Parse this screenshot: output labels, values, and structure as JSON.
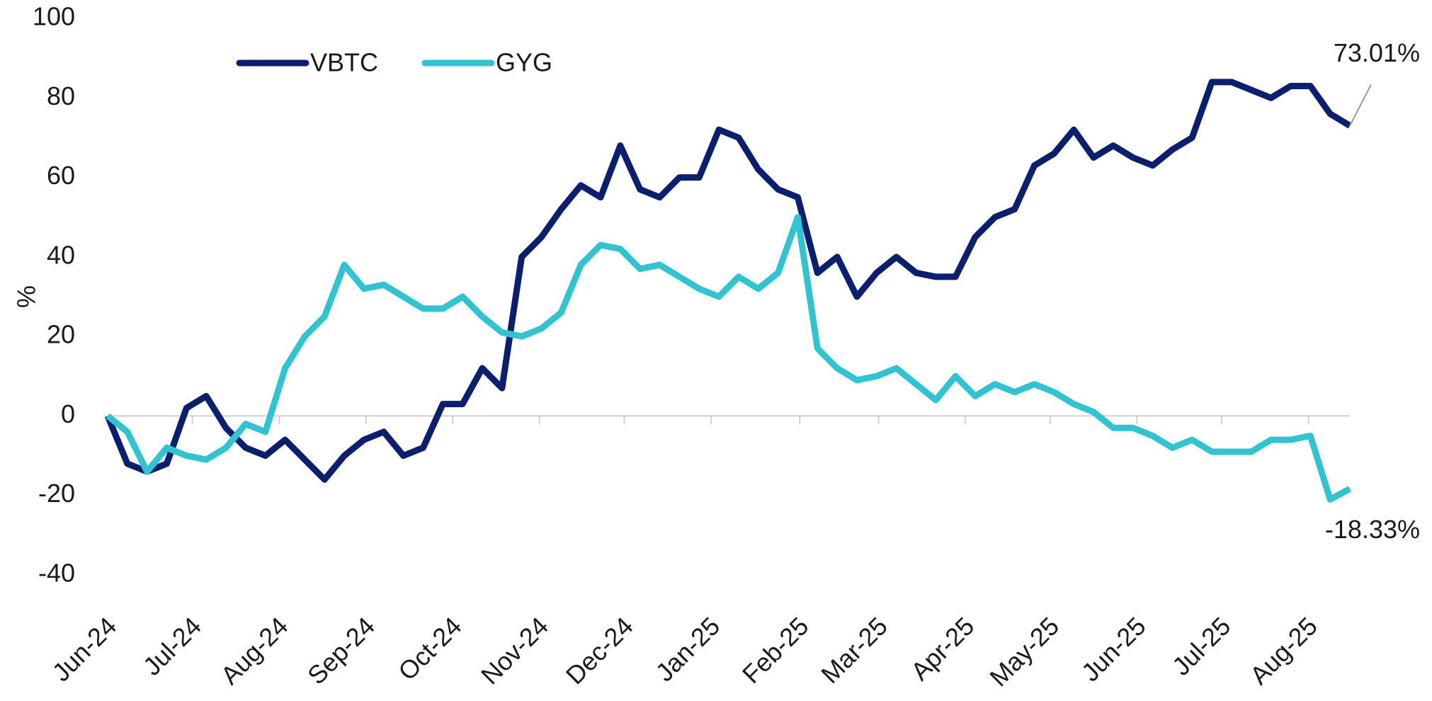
{
  "chart_data": {
    "type": "line",
    "y_label": "%",
    "legend": "top-left",
    "x": [
      0,
      1,
      2,
      3,
      4,
      5,
      6,
      7,
      8,
      9,
      10,
      11,
      12,
      13,
      14,
      15,
      16,
      17,
      18,
      19,
      20,
      21,
      22,
      23,
      24,
      25,
      26,
      27,
      28,
      29,
      30,
      31,
      32,
      33,
      34,
      35,
      36,
      37,
      38,
      39,
      40,
      41,
      42,
      43,
      44,
      45,
      46,
      47,
      48,
      49,
      50,
      51,
      52,
      53,
      54,
      55,
      56,
      57,
      58,
      59,
      60,
      61,
      62,
      63
    ],
    "xlim": [
      0,
      63
    ],
    "xticks": [
      {
        "value": 0,
        "label": "Jun-24"
      },
      {
        "value": 4.3,
        "label": "Jul-24"
      },
      {
        "value": 8.7,
        "label": "Aug-24"
      },
      {
        "value": 13.1,
        "label": "Sep-24"
      },
      {
        "value": 17.5,
        "label": "Oct-24"
      },
      {
        "value": 21.9,
        "label": "Nov-24"
      },
      {
        "value": 26.2,
        "label": "Dec-24"
      },
      {
        "value": 30.6,
        "label": "Jan-25"
      },
      {
        "value": 35.1,
        "label": "Feb-25"
      },
      {
        "value": 39.1,
        "label": "Mar-25"
      },
      {
        "value": 43.5,
        "label": "Apr-25"
      },
      {
        "value": 47.8,
        "label": "May-25"
      },
      {
        "value": 52.2,
        "label": "Jun-25"
      },
      {
        "value": 56.5,
        "label": "Jul-25"
      },
      {
        "value": 60.9,
        "label": "Aug-25"
      }
    ],
    "ylim": [
      -40,
      100
    ],
    "yticks": [
      -40,
      -20,
      0,
      20,
      40,
      60,
      80,
      100
    ],
    "series": [
      {
        "name": "VBTC",
        "color": "#0b1f6e",
        "end_label": "73.01%",
        "values": [
          0,
          -12,
          -14,
          -12,
          2,
          5,
          -3,
          -8,
          -10,
          -6,
          -11,
          -16,
          -10,
          -6,
          -4,
          -10,
          -8,
          3,
          3,
          12,
          7,
          40,
          45,
          52,
          58,
          55,
          68,
          57,
          55,
          60,
          60,
          72,
          70,
          62,
          57,
          55,
          36,
          40,
          30,
          36,
          40,
          36,
          35,
          35,
          45,
          50,
          52,
          63,
          66,
          72,
          65,
          68,
          65,
          63,
          67,
          70,
          84,
          84,
          82,
          80,
          83,
          83,
          76,
          73.01
        ]
      },
      {
        "name": "GYG",
        "color": "#31c3d1",
        "end_label": "-18.33%",
        "values": [
          0,
          -4,
          -14,
          -8,
          -10,
          -11,
          -8,
          -2,
          -4,
          12,
          20,
          25,
          38,
          32,
          33,
          30,
          27,
          27,
          30,
          25,
          21,
          20,
          22,
          26,
          38,
          43,
          42,
          37,
          38,
          35,
          32,
          30,
          35,
          32,
          36,
          50,
          17,
          12,
          9,
          10,
          12,
          8,
          4,
          10,
          5,
          8,
          6,
          8,
          6,
          3,
          1,
          -3,
          -3,
          -5,
          -8,
          -6,
          -9,
          -9,
          -9,
          -6,
          -6,
          -5,
          -21,
          -18.33
        ]
      }
    ]
  }
}
